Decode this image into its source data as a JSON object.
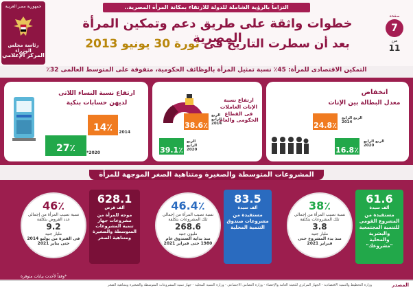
{
  "header": {
    "top_strip": "التزاماً بالرؤية الشاملة للدولة للارتقاء بمكانة المرأة المصرية..",
    "title_line1": "خطوات واثقة على طريق دعم وتمكين المرأة المصرية",
    "title_line2_pre": "بعد أن سطرت التاريخ فى",
    "title_line2_hl": "ثورة 30 يونيو 2013",
    "page_label": "صفحة",
    "page_number": "7",
    "page_of": "من",
    "page_total": "11"
  },
  "logo": {
    "top_text": "جمهورية مصر العربية",
    "line1": "رئاسة مجلس الوزراء",
    "line2": "المركز الإعلامي"
  },
  "subtitle": "التمكين الاقتصادى للمرأة: 45٪ نسبة تمثيل المرأة بالوظائف الحكومية، متفوقة على المتوسط العالمى 32٪",
  "card_left": {
    "title1": "ارتفاع نسبة النساء اللاتى",
    "title2": "لديهن حسابات بنكية",
    "val_2014": "14٪",
    "yr_2014": "2014",
    "val_2020": "27٪",
    "yr_2020": "2020*"
  },
  "card_mid": {
    "title": "ارتفاع نسبة الإناث العاملات فى القطاع الحكومى والعام",
    "val_a": "38.6٪",
    "yr_a": "الربع الرابع 2014",
    "val_b": "39.1٪",
    "yr_b": "الربع الرابع 2020"
  },
  "card_right": {
    "title1": "انخفاض",
    "title2": "معدل البطالة بين الإناث",
    "val_a": "24.8٪",
    "yr_a": "الربع الرابع 2014",
    "val_b": "16.8٪",
    "yr_b": "الربع الرابع 2020"
  },
  "section_header": "المشروعات المتوسطة والصغيرة ومتناهية الصغر الموجهة للمرأة",
  "block1": {
    "tag_num": "61.6",
    "tag_unit": "ألف سيدة",
    "tag_text": "مستفيدة من المشروع القومي للتنمية المجتمعية والبشرية والمحلية \"مشروعك\"",
    "pct": "38٪",
    "pct_text": "نسبة نصيب المرأة من إجمالي تلك المشروعات بتكلفة",
    "amount": "3.8",
    "amount_unit": "مليار جنيه",
    "amount_text": "منذ بدء المشروع حتى فبراير 2021"
  },
  "block2": {
    "tag_num": "83.5",
    "tag_unit": "ألف سيدة",
    "tag_text": "مستفيدة من مشروعات صندوق التنمية المحلية",
    "pct": "46.4٪",
    "pct_text": "نسبة نصيب المرأة من إجمالي تلك المشروعات بتكلفة",
    "amount": "268.6",
    "amount_unit": "مليون جنيه",
    "amount_text": "منذ بداية الصندوق عام 1980 حتى فبراير 2021"
  },
  "block3": {
    "tag_num": "628.1",
    "tag_unit": "ألف قرض",
    "tag_text": "موجه للمرأة من مشروعات جهاز تنمية المشروعات المتوسطة والصغيرة ومتناهية الصغر",
    "pct": "46٪",
    "pct_text": "نسبة نصيب المرأة من إجمالي عدد القروض بتكلفة",
    "amount": "9.2",
    "amount_unit": "مليار جنيه",
    "amount_text": "فى الفترة من يوليو 2014 حتى يناير 2021"
  },
  "footnote": "*وفقاً لأحدث بيانات متوفرة",
  "footer": {
    "source_label": "المصدر",
    "source_text": "وزارة التخطيط والتنمية الاقتصادية - الجهاز المركزي للتعبئة العامة والإحصاء - وزارة التضامن الاجتماعي - وزارة التنمية المحلية - جهاز تنمية المشروعات المتوسطة والصغيرة ومتناهية الصغر"
  },
  "colors": {
    "maroon": "#8e1543",
    "orange": "#f07b20",
    "green": "#22a84a",
    "blue": "#2a6bbf"
  }
}
